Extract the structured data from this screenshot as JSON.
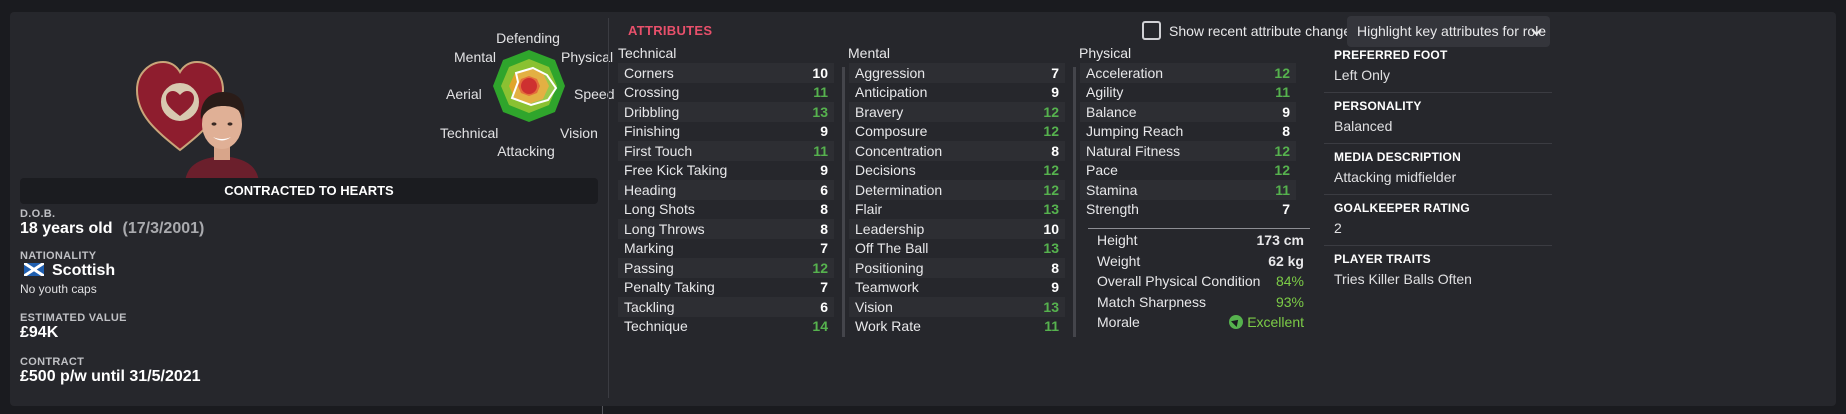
{
  "radar": {
    "labels": {
      "defending": "Defending",
      "mental": "Mental",
      "physical": "Physical",
      "aerial": "Aerial",
      "speed": "Speed",
      "technical": "Technical",
      "vision": "Vision",
      "attacking": "Attacking"
    }
  },
  "profile": {
    "contract_banner": "CONTRACTED TO HEARTS",
    "dob_label": "D.O.B.",
    "age": "18 years old",
    "dob": "(17/3/2001)",
    "nationality_label": "NATIONALITY",
    "nationality": "Scottish",
    "youth_caps": "No youth caps",
    "value_label": "ESTIMATED VALUE",
    "value": "£94K",
    "contract_label": "CONTRACT",
    "contract": "£500 p/w until 31/5/2021"
  },
  "attributes": {
    "title": "ATTRIBUTES",
    "show_recent_label": "Show recent attribute changes",
    "highlight_label": "Highlight key attributes for role",
    "technical_header": "Technical",
    "mental_header": "Mental",
    "physical_header": "Physical",
    "technical": [
      {
        "name": "Corners",
        "value": "10",
        "hi": false
      },
      {
        "name": "Crossing",
        "value": "11",
        "hi": true
      },
      {
        "name": "Dribbling",
        "value": "13",
        "hi": true
      },
      {
        "name": "Finishing",
        "value": "9",
        "hi": false
      },
      {
        "name": "First Touch",
        "value": "11",
        "hi": true
      },
      {
        "name": "Free Kick Taking",
        "value": "9",
        "hi": false
      },
      {
        "name": "Heading",
        "value": "6",
        "hi": false
      },
      {
        "name": "Long Shots",
        "value": "8",
        "hi": false
      },
      {
        "name": "Long Throws",
        "value": "8",
        "hi": false
      },
      {
        "name": "Marking",
        "value": "7",
        "hi": false
      },
      {
        "name": "Passing",
        "value": "12",
        "hi": true
      },
      {
        "name": "Penalty Taking",
        "value": "7",
        "hi": false
      },
      {
        "name": "Tackling",
        "value": "6",
        "hi": false
      },
      {
        "name": "Technique",
        "value": "14",
        "hi": true
      }
    ],
    "mental": [
      {
        "name": "Aggression",
        "value": "7",
        "hi": false
      },
      {
        "name": "Anticipation",
        "value": "9",
        "hi": false
      },
      {
        "name": "Bravery",
        "value": "12",
        "hi": true
      },
      {
        "name": "Composure",
        "value": "12",
        "hi": true
      },
      {
        "name": "Concentration",
        "value": "8",
        "hi": false
      },
      {
        "name": "Decisions",
        "value": "12",
        "hi": true
      },
      {
        "name": "Determination",
        "value": "12",
        "hi": true
      },
      {
        "name": "Flair",
        "value": "13",
        "hi": true
      },
      {
        "name": "Leadership",
        "value": "10",
        "hi": false
      },
      {
        "name": "Off The Ball",
        "value": "13",
        "hi": true
      },
      {
        "name": "Positioning",
        "value": "8",
        "hi": false
      },
      {
        "name": "Teamwork",
        "value": "9",
        "hi": false
      },
      {
        "name": "Vision",
        "value": "13",
        "hi": true
      },
      {
        "name": "Work Rate",
        "value": "11",
        "hi": true
      }
    ],
    "physical": [
      {
        "name": "Acceleration",
        "value": "12",
        "hi": true
      },
      {
        "name": "Agility",
        "value": "11",
        "hi": true
      },
      {
        "name": "Balance",
        "value": "9",
        "hi": false
      },
      {
        "name": "Jumping Reach",
        "value": "8",
        "hi": false
      },
      {
        "name": "Natural Fitness",
        "value": "12",
        "hi": true
      },
      {
        "name": "Pace",
        "value": "12",
        "hi": true
      },
      {
        "name": "Stamina",
        "value": "11",
        "hi": true
      },
      {
        "name": "Strength",
        "value": "7",
        "hi": false
      }
    ],
    "extra": {
      "height_label": "Height",
      "height": "173 cm",
      "weight_label": "Weight",
      "weight": "62 kg",
      "condition_label": "Overall Physical Condition",
      "condition": "84%",
      "sharpness_label": "Match Sharpness",
      "sharpness": "93%",
      "morale_label": "Morale",
      "morale": "Excellent"
    }
  },
  "details": {
    "foot_label": "PREFERRED FOOT",
    "foot": "Left Only",
    "personality_label": "PERSONALITY",
    "personality": "Balanced",
    "media_label": "MEDIA DESCRIPTION",
    "media": "Attacking midfielder",
    "gk_label": "GOALKEEPER RATING",
    "gk": "2",
    "traits_label": "PLAYER TRAITS",
    "traits": "Tries Killer Balls Often"
  },
  "colors": {
    "accent": "#e8506b",
    "highlight_value": "#56b24e",
    "panel": "#26272c"
  }
}
